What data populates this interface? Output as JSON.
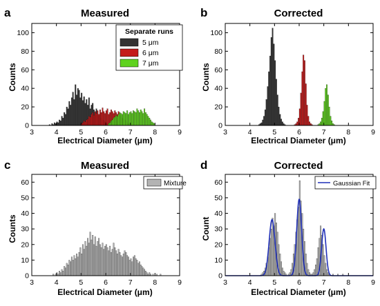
{
  "colors": {
    "run_5um": "#333333",
    "run_6um": "#c41a1a",
    "run_7um": "#5fd21f",
    "mixture": "#b3b3b3",
    "fit": "#1f2fb8"
  },
  "chart_data": [
    {
      "id": "a",
      "panel_letter": "a",
      "type": "bar",
      "title": "Measured",
      "xlabel": "Electrical Diameter (μm)",
      "ylabel": "Counts",
      "xlim": [
        3,
        9
      ],
      "ylim": [
        0,
        110
      ],
      "xticks": [
        3,
        4,
        5,
        6,
        7,
        8,
        9
      ],
      "yticks": [
        0,
        20,
        40,
        60,
        80,
        100
      ],
      "bin_width": 0.05,
      "legend": {
        "title": "Separate runs",
        "position": "top-right",
        "entries": [
          "5 μm",
          "6 μm",
          "7 μm"
        ]
      },
      "series": [
        {
          "name": "5 μm",
          "color": "#333333",
          "x_start": 3.7,
          "values": [
            1,
            0,
            2,
            1,
            3,
            2,
            4,
            3,
            6,
            5,
            10,
            8,
            14,
            12,
            20,
            18,
            26,
            22,
            30,
            36,
            28,
            44,
            33,
            40,
            38,
            30,
            35,
            27,
            31,
            24,
            28,
            22,
            30,
            18,
            22,
            24,
            17,
            14,
            18,
            11,
            10,
            12,
            8,
            6,
            5,
            4,
            3,
            2,
            1
          ]
        },
        {
          "name": "6 μm",
          "color": "#c41a1a",
          "x_start": 5.0,
          "values": [
            2,
            3,
            5,
            4,
            6,
            7,
            10,
            9,
            12,
            14,
            11,
            15,
            13,
            16,
            12,
            17,
            14,
            19,
            15,
            13,
            16,
            18,
            12,
            14,
            17,
            15,
            13,
            16,
            14,
            12,
            15,
            11,
            10,
            8,
            7,
            6,
            5,
            3,
            2,
            1
          ]
        },
        {
          "name": "7 μm",
          "color": "#5fd21f",
          "x_start": 6.1,
          "values": [
            2,
            3,
            5,
            6,
            8,
            9,
            11,
            10,
            12,
            14,
            13,
            12,
            15,
            14,
            13,
            16,
            12,
            14,
            15,
            13,
            16,
            15,
            14,
            18,
            16,
            14,
            17,
            15,
            13,
            18,
            14,
            12,
            10,
            8,
            6,
            4,
            3,
            2
          ]
        }
      ]
    },
    {
      "id": "b",
      "panel_letter": "b",
      "type": "bar",
      "title": "Corrected",
      "xlabel": "Electrical Diameter (μm)",
      "ylabel": "Counts",
      "xlim": [
        3,
        9
      ],
      "ylim": [
        0,
        110
      ],
      "xticks": [
        3,
        4,
        5,
        6,
        7,
        8,
        9
      ],
      "yticks": [
        0,
        20,
        40,
        60,
        80,
        100
      ],
      "bin_width": 0.05,
      "series": [
        {
          "name": "5 μm",
          "color": "#333333",
          "x_start": 4.35,
          "values": [
            1,
            2,
            3,
            6,
            10,
            17,
            28,
            42,
            58,
            75,
            95,
            105,
            88,
            70,
            50,
            33,
            20,
            12,
            7,
            4,
            2,
            1
          ]
        },
        {
          "name": "6 μm",
          "color": "#c41a1a",
          "x_start": 5.8,
          "values": [
            1,
            2,
            4,
            8,
            18,
            35,
            58,
            76,
            70,
            45,
            22,
            10,
            4,
            2,
            1
          ]
        },
        {
          "name": "7 μm",
          "color": "#5fd21f",
          "x_start": 6.75,
          "values": [
            1,
            2,
            4,
            8,
            15,
            26,
            40,
            44,
            33,
            20,
            10,
            5,
            2,
            1
          ]
        }
      ]
    },
    {
      "id": "c",
      "panel_letter": "c",
      "type": "bar",
      "title": "Measured",
      "xlabel": "Electrical Diameter (μm)",
      "ylabel": "Counts",
      "xlim": [
        3,
        9
      ],
      "ylim": [
        0,
        65
      ],
      "xticks": [
        3,
        4,
        5,
        6,
        7,
        8,
        9
      ],
      "yticks": [
        0,
        10,
        20,
        30,
        40,
        50,
        60
      ],
      "bin_width": 0.05,
      "legend": {
        "position": "top-right",
        "entries": [
          "Mixture"
        ]
      },
      "series": [
        {
          "name": "Mixture",
          "color": "#b3b3b3",
          "x_start": 3.85,
          "values": [
            1,
            0,
            1,
            2,
            1,
            3,
            2,
            4,
            3,
            6,
            5,
            8,
            7,
            10,
            9,
            12,
            10,
            13,
            11,
            14,
            12,
            15,
            18,
            14,
            20,
            17,
            22,
            19,
            24,
            21,
            28,
            23,
            26,
            20,
            25,
            19,
            22,
            24,
            20,
            18,
            21,
            17,
            19,
            20,
            18,
            16,
            19,
            15,
            17,
            21,
            18,
            16,
            14,
            17,
            15,
            13,
            12,
            14,
            16,
            15,
            13,
            12,
            10,
            11,
            9,
            12,
            13,
            11,
            10,
            8,
            9,
            7,
            6,
            5,
            4,
            3,
            2,
            1,
            2,
            1,
            0,
            1,
            0,
            0,
            1,
            0,
            0,
            1
          ]
        }
      ]
    },
    {
      "id": "d",
      "panel_letter": "d",
      "type": "bar",
      "title": "Corrected",
      "xlabel": "Electrical Diameter (μm)",
      "ylabel": "Count",
      "xlim": [
        3,
        9
      ],
      "ylim": [
        0,
        65
      ],
      "xticks": [
        3,
        4,
        5,
        6,
        7,
        8,
        9
      ],
      "yticks": [
        0,
        10,
        20,
        30,
        40,
        50,
        60
      ],
      "bin_width": 0.05,
      "legend": {
        "position": "top-right",
        "entries": [
          "Gaussian Fit"
        ]
      },
      "series": [
        {
          "name": "Mixture",
          "color": "#b3b3b3",
          "x_start": 4.45,
          "values": [
            1,
            2,
            3,
            5,
            8,
            12,
            18,
            24,
            30,
            37,
            32,
            40,
            34,
            28,
            20,
            14,
            9,
            5,
            3,
            2,
            1,
            0,
            1,
            2,
            4,
            8,
            14,
            20,
            28,
            36,
            44,
            61,
            48,
            40,
            30,
            22,
            14,
            8,
            4,
            2,
            1,
            1,
            2,
            4,
            7,
            11,
            18,
            24,
            32,
            26,
            20,
            13,
            8,
            4,
            2,
            1,
            0,
            0,
            1,
            0,
            0,
            0,
            1,
            0,
            0,
            0,
            1
          ]
        }
      ],
      "fit": {
        "name": "Gaussian Fit",
        "components": [
          {
            "amplitude": 36,
            "mean": 4.9,
            "sigma": 0.12
          },
          {
            "amplitude": 49,
            "mean": 6.0,
            "sigma": 0.1
          },
          {
            "amplitude": 30,
            "mean": 7.0,
            "sigma": 0.09
          }
        ]
      }
    }
  ]
}
